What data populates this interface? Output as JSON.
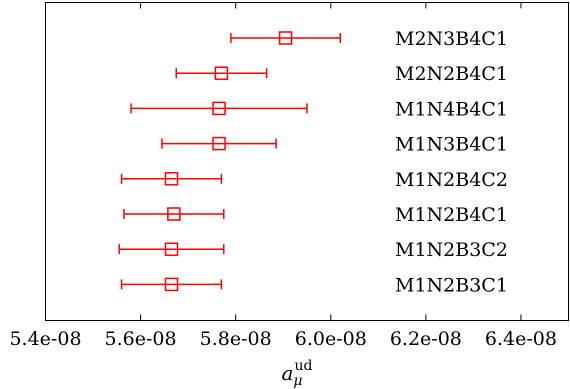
{
  "chart_data": {
    "type": "scatter",
    "title": "",
    "xlabel": "a",
    "xlabel_sub": "μ",
    "xlabel_sup": "ud",
    "ylabel": "",
    "xlim": [
      5.4e-08,
      6.5e-08
    ],
    "x_ticks": [
      5.4e-08,
      5.6e-08,
      5.8e-08,
      6e-08,
      6.2e-08,
      6.4e-08
    ],
    "x_tick_labels": [
      "5.4e-08",
      "5.6e-08",
      "5.8e-08",
      "6.0e-08",
      "6.2e-08",
      "6.4e-08"
    ],
    "grid": false,
    "marker": "open-square",
    "color": "#ff0000",
    "points": [
      {
        "label": "M2N3B4C1",
        "value": 5.905e-08,
        "err_low": 5.79e-08,
        "err_high": 6.02e-08
      },
      {
        "label": "M2N2B4C1",
        "value": 5.77e-08,
        "err_low": 5.675e-08,
        "err_high": 5.865e-08
      },
      {
        "label": "M1N4B4C1",
        "value": 5.765e-08,
        "err_low": 5.58e-08,
        "err_high": 5.95e-08
      },
      {
        "label": "M1N3B4C1",
        "value": 5.765e-08,
        "err_low": 5.645e-08,
        "err_high": 5.885e-08
      },
      {
        "label": "M1N2B4C2",
        "value": 5.665e-08,
        "err_low": 5.56e-08,
        "err_high": 5.77e-08
      },
      {
        "label": "M1N2B4C1",
        "value": 5.67e-08,
        "err_low": 5.565e-08,
        "err_high": 5.775e-08
      },
      {
        "label": "M1N2B3C2",
        "value": 5.665e-08,
        "err_low": 5.555e-08,
        "err_high": 5.775e-08
      },
      {
        "label": "M1N2B3C1",
        "value": 5.665e-08,
        "err_low": 5.56e-08,
        "err_high": 5.77e-08
      }
    ]
  }
}
